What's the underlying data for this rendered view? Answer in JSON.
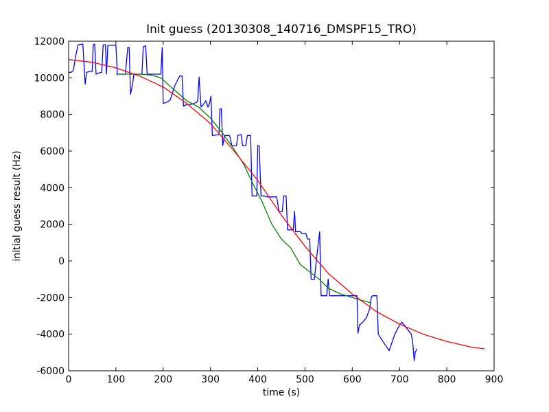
{
  "chart_data": {
    "type": "line",
    "title": "Init guess (20130308_140716_DMSPF15_TRO)",
    "xlabel": "time (s)",
    "ylabel": "initial guess result (Hz)",
    "xlim": [
      0,
      900
    ],
    "ylim": [
      -6000,
      12000
    ],
    "xticks": [
      0,
      100,
      200,
      300,
      400,
      500,
      600,
      700,
      800,
      900
    ],
    "yticks": [
      -6000,
      -4000,
      -2000,
      0,
      2000,
      4000,
      6000,
      8000,
      10000,
      12000
    ],
    "grid": false,
    "legend": "none",
    "series": [
      {
        "color": "#0000ff",
        "points": [
          [
            0,
            10300
          ],
          [
            5,
            10300
          ],
          [
            10,
            10400
          ],
          [
            15,
            11200
          ],
          [
            20,
            11800
          ],
          [
            30,
            11850
          ],
          [
            35,
            9650
          ],
          [
            38,
            10300
          ],
          [
            45,
            10350
          ],
          [
            50,
            10350
          ],
          [
            52,
            11800
          ],
          [
            55,
            11850
          ],
          [
            58,
            10200
          ],
          [
            62,
            10250
          ],
          [
            70,
            10300
          ],
          [
            73,
            11800
          ],
          [
            78,
            11800
          ],
          [
            80,
            10200
          ],
          [
            83,
            11780
          ],
          [
            100,
            11780
          ],
          [
            103,
            10200
          ],
          [
            120,
            10200
          ],
          [
            125,
            11650
          ],
          [
            128,
            11650
          ],
          [
            131,
            9100
          ],
          [
            135,
            9600
          ],
          [
            138,
            10200
          ],
          [
            155,
            10200
          ],
          [
            158,
            11700
          ],
          [
            163,
            11750
          ],
          [
            166,
            10200
          ],
          [
            185,
            10200
          ],
          [
            195,
            10200
          ],
          [
            198,
            11650
          ],
          [
            200,
            8600
          ],
          [
            210,
            8700
          ],
          [
            215,
            8800
          ],
          [
            225,
            9600
          ],
          [
            235,
            10100
          ],
          [
            240,
            10100
          ],
          [
            243,
            8450
          ],
          [
            250,
            8550
          ],
          [
            260,
            8550
          ],
          [
            270,
            8650
          ],
          [
            273,
            8750
          ],
          [
            276,
            10050
          ],
          [
            280,
            8400
          ],
          [
            285,
            8550
          ],
          [
            290,
            8750
          ],
          [
            295,
            8400
          ],
          [
            298,
            8600
          ],
          [
            301,
            9000
          ],
          [
            304,
            6850
          ],
          [
            318,
            6900
          ],
          [
            320,
            8300
          ],
          [
            323,
            8300
          ],
          [
            326,
            6300
          ],
          [
            330,
            6850
          ],
          [
            340,
            6850
          ],
          [
            342,
            6700
          ],
          [
            345,
            6300
          ],
          [
            355,
            6300
          ],
          [
            358,
            6850
          ],
          [
            365,
            6900
          ],
          [
            368,
            6300
          ],
          [
            375,
            6300
          ],
          [
            378,
            6850
          ],
          [
            385,
            6850
          ],
          [
            388,
            3550
          ],
          [
            398,
            3550
          ],
          [
            400,
            6300
          ],
          [
            403,
            6300
          ],
          [
            407,
            3550
          ],
          [
            415,
            3550
          ],
          [
            418,
            3500
          ],
          [
            425,
            3500
          ],
          [
            430,
            3500
          ],
          [
            435,
            3500
          ],
          [
            440,
            3500
          ],
          [
            445,
            2700
          ],
          [
            452,
            2700
          ],
          [
            455,
            3550
          ],
          [
            460,
            3550
          ],
          [
            463,
            1700
          ],
          [
            470,
            1700
          ],
          [
            475,
            1700
          ],
          [
            478,
            2700
          ],
          [
            480,
            1600
          ],
          [
            490,
            1600
          ],
          [
            493,
            1500
          ],
          [
            497,
            1500
          ],
          [
            502,
            1500
          ],
          [
            505,
            1200
          ],
          [
            510,
            1200
          ],
          [
            513,
            -1000
          ],
          [
            520,
            -1000
          ],
          [
            523,
            -200
          ],
          [
            527,
            700
          ],
          [
            531,
            1600
          ],
          [
            534,
            -1900
          ],
          [
            546,
            -1900
          ],
          [
            549,
            -1000
          ],
          [
            552,
            -1900
          ],
          [
            565,
            -1900
          ],
          [
            570,
            -1900
          ],
          [
            580,
            -1900
          ],
          [
            590,
            -1900
          ],
          [
            600,
            -1900
          ],
          [
            610,
            -1900
          ],
          [
            612,
            -3950
          ],
          [
            615,
            -3500
          ],
          [
            620,
            -3400
          ],
          [
            630,
            -3100
          ],
          [
            637,
            -2600
          ],
          [
            640,
            -2000
          ],
          [
            643,
            -1900
          ],
          [
            652,
            -1900
          ],
          [
            655,
            -4000
          ],
          [
            670,
            -4600
          ],
          [
            678,
            -4900
          ],
          [
            690,
            -4000
          ],
          [
            700,
            -3500
          ],
          [
            705,
            -3350
          ],
          [
            725,
            -4000
          ],
          [
            728,
            -4500
          ],
          [
            731,
            -5450
          ],
          [
            733,
            -5000
          ],
          [
            737,
            -4800
          ]
        ]
      },
      {
        "color": "#008000",
        "points": [
          [
            100,
            10200
          ],
          [
            130,
            10200
          ],
          [
            150,
            10200
          ],
          [
            175,
            10150
          ],
          [
            195,
            10000
          ],
          [
            210,
            9650
          ],
          [
            230,
            9200
          ],
          [
            250,
            8750
          ],
          [
            275,
            8400
          ],
          [
            300,
            7800
          ],
          [
            325,
            7000
          ],
          [
            350,
            6100
          ],
          [
            370,
            5300
          ],
          [
            390,
            4200
          ],
          [
            410,
            3200
          ],
          [
            430,
            2000
          ],
          [
            450,
            1200
          ],
          [
            470,
            700
          ],
          [
            490,
            -200
          ],
          [
            510,
            -600
          ],
          [
            530,
            -1000
          ],
          [
            550,
            -1500
          ],
          [
            575,
            -1800
          ],
          [
            600,
            -2000
          ],
          [
            640,
            -2300
          ]
        ]
      },
      {
        "color": "#ff0000",
        "points": [
          [
            0,
            11000
          ],
          [
            50,
            10850
          ],
          [
            100,
            10550
          ],
          [
            150,
            10100
          ],
          [
            200,
            9500
          ],
          [
            250,
            8600
          ],
          [
            300,
            7500
          ],
          [
            350,
            6000
          ],
          [
            400,
            4400
          ],
          [
            450,
            2500
          ],
          [
            500,
            800
          ],
          [
            550,
            -700
          ],
          [
            600,
            -1800
          ],
          [
            650,
            -2750
          ],
          [
            700,
            -3450
          ],
          [
            750,
            -4000
          ],
          [
            800,
            -4400
          ],
          [
            850,
            -4700
          ],
          [
            880,
            -4800
          ]
        ]
      }
    ]
  }
}
